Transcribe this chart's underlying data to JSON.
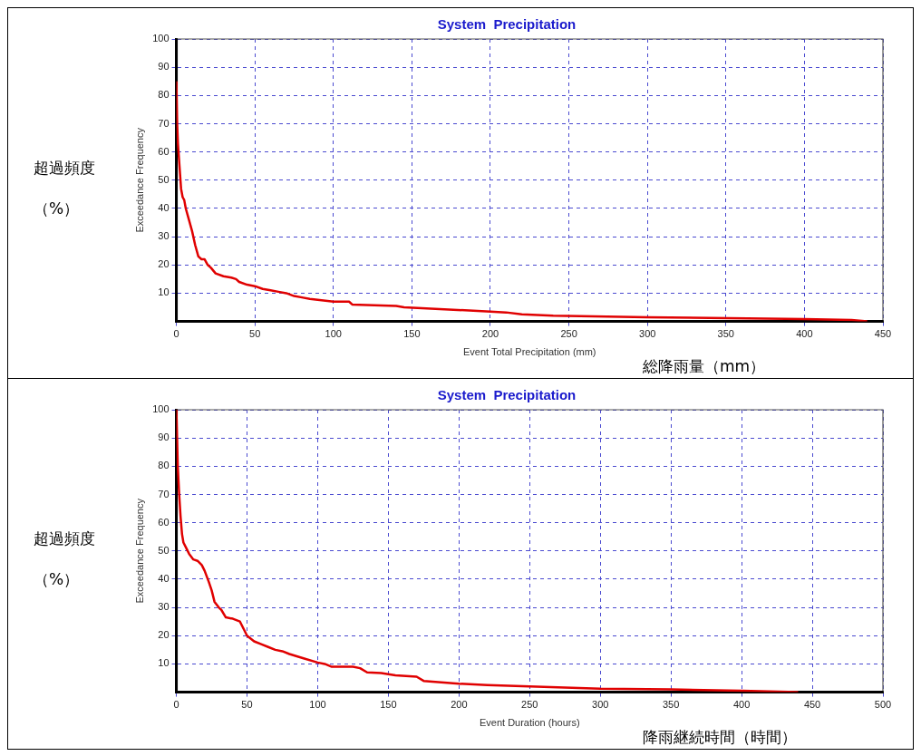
{
  "chart_data": [
    {
      "type": "line",
      "title": "System  Precipitation",
      "xlabel": "Event Total Precipitation (mm)",
      "ylabel": "Exceedance Frequency",
      "annotations": [
        "超過頻度",
        "（%）",
        "総降雨量（mm）"
      ],
      "x": [
        0,
        0.5,
        1,
        2,
        3,
        4,
        5,
        6,
        8,
        10,
        12,
        14,
        16,
        18,
        20,
        22,
        25,
        30,
        35,
        38,
        40,
        45,
        50,
        55,
        60,
        65,
        70,
        75,
        80,
        85,
        100,
        110,
        112,
        140,
        145,
        200,
        210,
        220,
        240,
        300,
        400,
        430,
        440
      ],
      "series": [
        {
          "color": "#e00000",
          "values": [
            85,
            70,
            63,
            55,
            47,
            44,
            43,
            40,
            36,
            32,
            27,
            23,
            22,
            22,
            20,
            19,
            17,
            16,
            15.5,
            15,
            14,
            13,
            12.5,
            11.5,
            11,
            10.5,
            10,
            9,
            8.5,
            8,
            7,
            7,
            6,
            5.5,
            5,
            3.5,
            3.2,
            2.5,
            2,
            1.5,
            0.8,
            0.5,
            0
          ]
        }
      ],
      "xlim": [
        0,
        450
      ],
      "xticks": [
        0,
        50,
        100,
        150,
        200,
        250,
        300,
        350,
        400,
        450
      ],
      "ylim": [
        0,
        100
      ],
      "yticks": [
        10,
        20,
        30,
        40,
        50,
        60,
        70,
        80,
        90,
        100
      ],
      "grid": true,
      "marker": "none",
      "line_style": "solid"
    },
    {
      "type": "line",
      "title": "System  Precipitation",
      "xlabel": "Event Duration (hours)",
      "ylabel": "Exceedance Frequency",
      "annotations": [
        "超過頻度",
        "（%）",
        "降雨継続時間（時間）"
      ],
      "x": [
        0,
        0.5,
        1,
        2,
        3,
        4,
        5,
        7,
        9,
        12,
        15,
        18,
        20,
        23,
        25,
        27,
        30,
        32,
        35,
        40,
        45,
        48,
        50,
        55,
        60,
        65,
        70,
        75,
        80,
        90,
        100,
        105,
        110,
        125,
        130,
        135,
        145,
        155,
        170,
        175,
        200,
        220,
        250,
        300,
        350,
        400,
        440
      ],
      "series": [
        {
          "color": "#e00000",
          "values": [
            100,
            90,
            80,
            70,
            62,
            56,
            53,
            51,
            49,
            47,
            46.5,
            45,
            43,
            39,
            36,
            32,
            30,
            29,
            26.5,
            26,
            25,
            22,
            20,
            18,
            17,
            16,
            15,
            14.5,
            13.5,
            12,
            10.5,
            10,
            9,
            9,
            8.5,
            7,
            6.8,
            6,
            5.5,
            4,
            3,
            2.5,
            2,
            1.2,
            1,
            0.5,
            0
          ]
        }
      ],
      "xlim": [
        0,
        500
      ],
      "xticks": [
        0,
        50,
        100,
        150,
        200,
        250,
        300,
        350,
        400,
        450,
        500
      ],
      "ylim": [
        0,
        100
      ],
      "yticks": [
        10,
        20,
        30,
        40,
        50,
        60,
        70,
        80,
        90,
        100
      ],
      "grid": true,
      "marker": "none",
      "line_style": "solid"
    }
  ]
}
